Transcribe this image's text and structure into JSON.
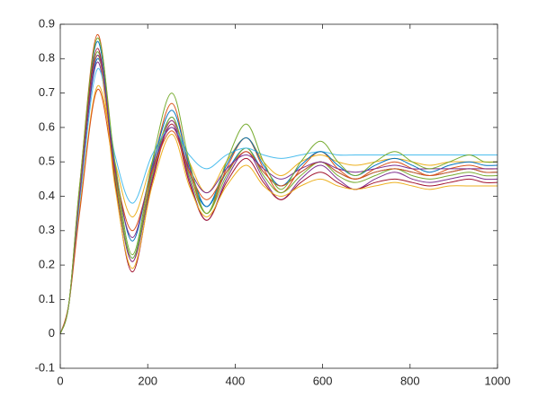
{
  "chart_data": {
    "type": "line",
    "x": [
      0,
      20,
      45,
      85,
      125,
      165,
      210,
      255,
      295,
      335,
      380,
      425,
      465,
      505,
      550,
      595,
      635,
      675,
      720,
      765,
      805,
      845,
      890,
      935,
      970,
      1000
    ],
    "series": [
      {
        "color": "#0072BD",
        "values": [
          0,
          0.09,
          0.43,
          0.85,
          0.47,
          0.22,
          0.47,
          0.63,
          0.47,
          0.37,
          0.47,
          0.54,
          0.47,
          0.43,
          0.47,
          0.5,
          0.47,
          0.45,
          0.47,
          0.48,
          0.47,
          0.46,
          0.47,
          0.48,
          0.47,
          0.47
        ]
      },
      {
        "color": "#D95319",
        "values": [
          0,
          0.09,
          0.44,
          0.87,
          0.48,
          0.21,
          0.48,
          0.67,
          0.48,
          0.35,
          0.48,
          0.57,
          0.48,
          0.41,
          0.48,
          0.53,
          0.48,
          0.45,
          0.48,
          0.5,
          0.48,
          0.46,
          0.48,
          0.49,
          0.48,
          0.48
        ]
      },
      {
        "color": "#EDB120",
        "values": [
          0,
          0.09,
          0.37,
          0.72,
          0.5,
          0.34,
          0.5,
          0.62,
          0.5,
          0.41,
          0.5,
          0.57,
          0.5,
          0.46,
          0.5,
          0.52,
          0.5,
          0.49,
          0.5,
          0.51,
          0.5,
          0.49,
          0.5,
          0.5,
          0.5,
          0.5
        ]
      },
      {
        "color": "#7E2F8E",
        "values": [
          0,
          0.09,
          0.4,
          0.79,
          0.45,
          0.21,
          0.45,
          0.62,
          0.45,
          0.33,
          0.45,
          0.53,
          0.45,
          0.39,
          0.45,
          0.49,
          0.45,
          0.42,
          0.45,
          0.47,
          0.45,
          0.44,
          0.45,
          0.46,
          0.45,
          0.45
        ]
      },
      {
        "color": "#77AC30",
        "values": [
          0,
          0.09,
          0.42,
          0.82,
          0.46,
          0.22,
          0.46,
          0.63,
          0.46,
          0.35,
          0.46,
          0.54,
          0.46,
          0.41,
          0.46,
          0.5,
          0.46,
          0.44,
          0.46,
          0.48,
          0.46,
          0.45,
          0.46,
          0.47,
          0.46,
          0.46
        ]
      },
      {
        "color": "#4DBEEE",
        "values": [
          0,
          0.09,
          0.39,
          0.77,
          0.52,
          0.38,
          0.52,
          0.6,
          0.52,
          0.48,
          0.52,
          0.54,
          0.52,
          0.51,
          0.52,
          0.53,
          0.52,
          0.52,
          0.52,
          0.52,
          0.52,
          0.52,
          0.52,
          0.52,
          0.52,
          0.52
        ]
      },
      {
        "color": "#A2142F",
        "values": [
          0,
          0.09,
          0.42,
          0.83,
          0.44,
          0.18,
          0.44,
          0.61,
          0.44,
          0.33,
          0.44,
          0.51,
          0.44,
          0.39,
          0.44,
          0.47,
          0.44,
          0.42,
          0.44,
          0.45,
          0.44,
          0.43,
          0.44,
          0.45,
          0.44,
          0.44
        ]
      },
      {
        "color": "#0072BD",
        "values": [
          0,
          0.09,
          0.41,
          0.8,
          0.49,
          0.27,
          0.49,
          0.65,
          0.49,
          0.37,
          0.49,
          0.57,
          0.49,
          0.43,
          0.49,
          0.53,
          0.49,
          0.46,
          0.49,
          0.51,
          0.49,
          0.47,
          0.49,
          0.5,
          0.49,
          0.49
        ]
      },
      {
        "color": "#D95319",
        "values": [
          0,
          0.09,
          0.36,
          0.71,
          0.47,
          0.3,
          0.47,
          0.59,
          0.47,
          0.39,
          0.47,
          0.53,
          0.47,
          0.43,
          0.47,
          0.5,
          0.47,
          0.45,
          0.47,
          0.48,
          0.47,
          0.46,
          0.47,
          0.48,
          0.47,
          0.47
        ]
      },
      {
        "color": "#EDB120",
        "values": [
          0,
          0.09,
          0.41,
          0.81,
          0.43,
          0.19,
          0.43,
          0.58,
          0.43,
          0.34,
          0.43,
          0.49,
          0.43,
          0.4,
          0.43,
          0.45,
          0.43,
          0.42,
          0.43,
          0.44,
          0.43,
          0.42,
          0.43,
          0.43,
          0.43,
          0.43
        ]
      },
      {
        "color": "#7E2F8E",
        "values": [
          0,
          0.09,
          0.41,
          0.81,
          0.48,
          0.28,
          0.48,
          0.6,
          0.48,
          0.41,
          0.48,
          0.52,
          0.48,
          0.45,
          0.48,
          0.5,
          0.48,
          0.47,
          0.48,
          0.49,
          0.48,
          0.48,
          0.48,
          0.48,
          0.48,
          0.48
        ]
      },
      {
        "color": "#77AC30",
        "values": [
          0,
          0.09,
          0.44,
          0.86,
          0.5,
          0.23,
          0.5,
          0.7,
          0.5,
          0.35,
          0.5,
          0.61,
          0.5,
          0.42,
          0.5,
          0.56,
          0.5,
          0.46,
          0.5,
          0.53,
          0.5,
          0.48,
          0.5,
          0.52,
          0.5,
          0.5
        ]
      }
    ],
    "xlim": [
      0,
      1000
    ],
    "xticks": [
      0,
      200,
      400,
      600,
      800,
      1000
    ],
    "ylim": [
      -0.1,
      0.9
    ],
    "yticks": [
      -0.1,
      0,
      0.1,
      0.2,
      0.3,
      0.4,
      0.5,
      0.6,
      0.7,
      0.8,
      0.9
    ],
    "grid": false
  }
}
